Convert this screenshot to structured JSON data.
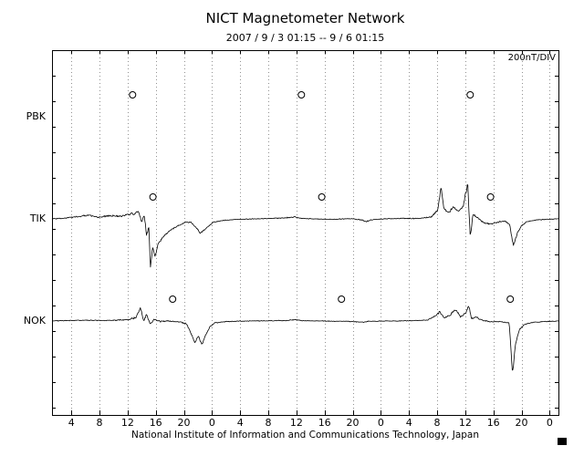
{
  "footer": {
    "credit": "National Institute of Information and Communications Technology, Japan"
  },
  "chart_data": {
    "type": "line",
    "title": "NICT Magnetometer Network",
    "subtitle": "2007 / 9 / 3  01:15 -- 9 / 6  01:15",
    "scale_label": "200nT/DIV",
    "y_unit": "nT",
    "nT_per_div": 200,
    "x_axis": {
      "unit": "hour (UT), 3 days",
      "range_hours": [
        1.25,
        73.25
      ],
      "tick_hours": [
        4,
        8,
        12,
        16,
        20,
        24,
        28,
        32,
        36,
        40,
        44,
        48,
        52,
        56,
        60,
        64,
        68,
        72
      ],
      "tick_labels": [
        "4",
        "8",
        "12",
        "16",
        "20",
        "0",
        "4",
        "8",
        "12",
        "16",
        "20",
        "0",
        "4",
        "8",
        "12",
        "16",
        "20",
        "0"
      ]
    },
    "keypoints_format": "[hour_from_day1_00UT, value_nT, noise_amplitude_nT]",
    "stations": [
      {
        "name": "PBK",
        "has_data": false,
        "circle_markers_t_hours": [
          12.7,
          36.7,
          60.7
        ],
        "keypoints": []
      },
      {
        "name": "TIK",
        "has_data": true,
        "circle_markers_t_hours": [
          15.6,
          39.6,
          63.6
        ],
        "keypoints": [
          [
            1.25,
            0,
            4
          ],
          [
            3,
            3,
            5
          ],
          [
            5,
            10,
            6
          ],
          [
            6.5,
            14,
            6
          ],
          [
            8,
            6,
            6
          ],
          [
            9.5,
            13,
            7
          ],
          [
            11,
            10,
            8
          ],
          [
            12,
            18,
            9
          ],
          [
            13,
            22,
            12
          ],
          [
            13.6,
            28,
            14
          ],
          [
            14.0,
            -15,
            18
          ],
          [
            14.35,
            15,
            14
          ],
          [
            14.7,
            -70,
            22
          ],
          [
            15.0,
            -25,
            18
          ],
          [
            15.25,
            -195,
            25
          ],
          [
            15.55,
            -110,
            18
          ],
          [
            15.9,
            -150,
            14
          ],
          [
            16.4,
            -95,
            10
          ],
          [
            17.2,
            -65,
            8
          ],
          [
            18.2,
            -42,
            6
          ],
          [
            19.2,
            -26,
            5
          ],
          [
            20.2,
            -13,
            5
          ],
          [
            21.0,
            -14,
            4
          ],
          [
            21.7,
            -32,
            5
          ],
          [
            22.3,
            -55,
            6
          ],
          [
            22.9,
            -44,
            5
          ],
          [
            23.5,
            -28,
            5
          ],
          [
            24.2,
            -13,
            4
          ],
          [
            25.5,
            -6,
            4
          ],
          [
            27.5,
            -2,
            3
          ],
          [
            30,
            0,
            3
          ],
          [
            32.5,
            2,
            3
          ],
          [
            34.5,
            4,
            4
          ],
          [
            35.7,
            8,
            5
          ],
          [
            36.6,
            2,
            3
          ],
          [
            38.5,
            0,
            3
          ],
          [
            41,
            -2,
            3
          ],
          [
            43.5,
            1,
            4
          ],
          [
            45.2,
            -3,
            5
          ],
          [
            45.9,
            -11,
            6
          ],
          [
            46.6,
            -4,
            4
          ],
          [
            48.5,
            0,
            3
          ],
          [
            51,
            2,
            3
          ],
          [
            53.5,
            1,
            4
          ],
          [
            55.2,
            8,
            6
          ],
          [
            56.1,
            35,
            12
          ],
          [
            56.55,
            125,
            16
          ],
          [
            56.95,
            42,
            12
          ],
          [
            57.6,
            24,
            9
          ],
          [
            58.3,
            46,
            11
          ],
          [
            59.0,
            28,
            9
          ],
          [
            59.7,
            50,
            12
          ],
          [
            60.35,
            140,
            16
          ],
          [
            60.7,
            -72,
            20
          ],
          [
            61.1,
            18,
            12
          ],
          [
            61.8,
            4,
            7
          ],
          [
            62.6,
            -14,
            6
          ],
          [
            63.6,
            -21,
            6
          ],
          [
            64.6,
            -13,
            5
          ],
          [
            65.6,
            -8,
            5
          ],
          [
            66.3,
            -22,
            6
          ],
          [
            66.85,
            -105,
            10
          ],
          [
            67.4,
            -58,
            8
          ],
          [
            68.0,
            -26,
            6
          ],
          [
            68.8,
            -11,
            4
          ],
          [
            70.2,
            -4,
            3
          ],
          [
            72,
            -1,
            3
          ],
          [
            73.25,
            0,
            3
          ]
        ]
      },
      {
        "name": "NOK",
        "has_data": true,
        "circle_markers_t_hours": [
          18.4,
          42.4,
          66.4
        ],
        "keypoints": [
          [
            1.25,
            0,
            3
          ],
          [
            3.5,
            2,
            3
          ],
          [
            6,
            3,
            3
          ],
          [
            8.5,
            2,
            3
          ],
          [
            10.5,
            3,
            4
          ],
          [
            12.2,
            7,
            6
          ],
          [
            13.2,
            14,
            9
          ],
          [
            13.85,
            55,
            13
          ],
          [
            14.25,
            2,
            11
          ],
          [
            14.7,
            26,
            9
          ],
          [
            15.2,
            -12,
            9
          ],
          [
            15.8,
            8,
            7
          ],
          [
            16.6,
            -2,
            5
          ],
          [
            18,
            0,
            4
          ],
          [
            19.5,
            -4,
            4
          ],
          [
            20.4,
            -12,
            6
          ],
          [
            21.0,
            -46,
            9
          ],
          [
            21.55,
            -85,
            9
          ],
          [
            22.05,
            -58,
            8
          ],
          [
            22.55,
            -92,
            9
          ],
          [
            23.1,
            -55,
            7
          ],
          [
            23.7,
            -22,
            5
          ],
          [
            24.4,
            -7,
            4
          ],
          [
            26,
            -2,
            3
          ],
          [
            29,
            0,
            3
          ],
          [
            32,
            1,
            3
          ],
          [
            34.5,
            2,
            3
          ],
          [
            35.9,
            6,
            4
          ],
          [
            36.7,
            1,
            3
          ],
          [
            39.5,
            0,
            3
          ],
          [
            43,
            -1,
            3
          ],
          [
            45.5,
            -4,
            4
          ],
          [
            46.3,
            -1,
            3
          ],
          [
            49,
            0,
            3
          ],
          [
            52.5,
            1,
            3
          ],
          [
            54.6,
            4,
            4
          ],
          [
            55.7,
            18,
            8
          ],
          [
            56.35,
            36,
            11
          ],
          [
            57.0,
            12,
            7
          ],
          [
            57.8,
            21,
            8
          ],
          [
            58.6,
            46,
            11
          ],
          [
            59.3,
            18,
            8
          ],
          [
            60.0,
            28,
            9
          ],
          [
            60.5,
            62,
            13
          ],
          [
            60.9,
            8,
            9
          ],
          [
            61.5,
            16,
            7
          ],
          [
            62.3,
            4,
            5
          ],
          [
            63.5,
            -3,
            4
          ],
          [
            65,
            -2,
            3
          ],
          [
            66.25,
            -8,
            5
          ],
          [
            66.72,
            -207,
            18
          ],
          [
            67.15,
            -88,
            10
          ],
          [
            67.7,
            -34,
            6
          ],
          [
            68.4,
            -13,
            4
          ],
          [
            69.6,
            -5,
            3
          ],
          [
            71.5,
            -2,
            3
          ],
          [
            73.25,
            0,
            3
          ]
        ]
      }
    ]
  }
}
